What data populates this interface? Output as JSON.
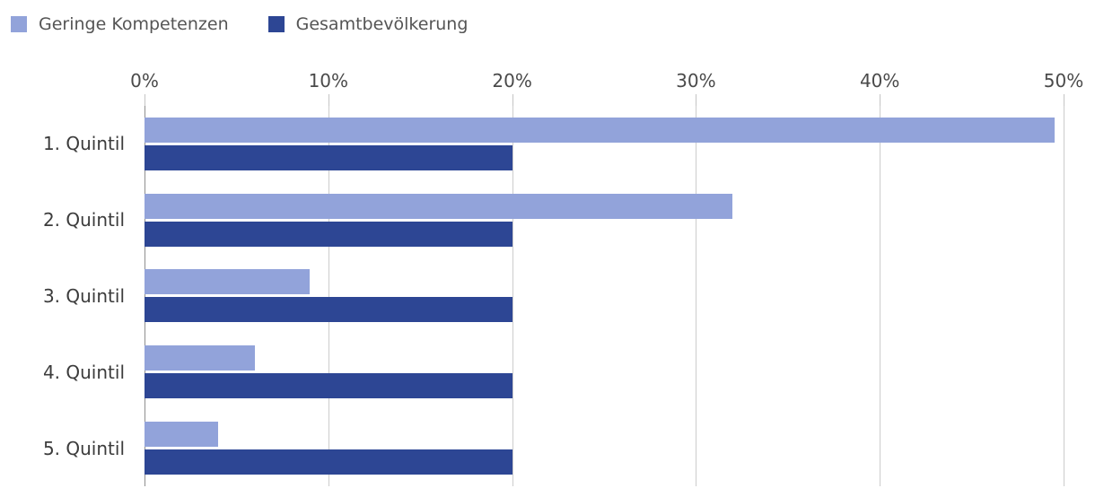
{
  "chart_data": {
    "type": "bar",
    "orientation": "horizontal",
    "title": "",
    "xlabel": "",
    "ylabel": "",
    "xlim": [
      0,
      50
    ],
    "grid": true,
    "legend_position": "top-left",
    "x_ticks": [
      "0%",
      "10%",
      "20%",
      "30%",
      "40%",
      "50%"
    ],
    "x_tick_values": [
      0,
      10,
      20,
      30,
      40,
      50
    ],
    "categories": [
      "1. Quintil",
      "2. Quintil",
      "3. Quintil",
      "4. Quintil",
      "5. Quintil"
    ],
    "series": [
      {
        "name": "Geringe Kompetenzen",
        "color": "#92a3da",
        "values": [
          49.5,
          32,
          9,
          6,
          4
        ]
      },
      {
        "name": "Gesamtbevölkerung",
        "color": "#2d4694",
        "values": [
          20,
          20,
          20,
          20,
          20
        ]
      }
    ]
  }
}
